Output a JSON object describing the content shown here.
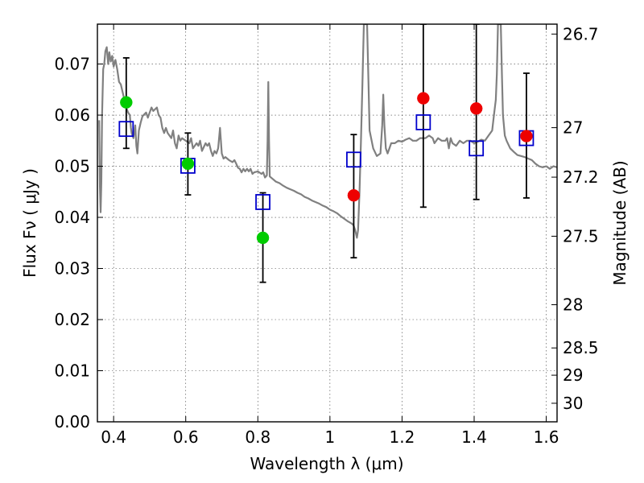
{
  "chart_data": {
    "type": "scatter",
    "xlabel": "Wavelength  λ (μm)",
    "ylabel": "Flux  Fν  ( μJy )",
    "ylabel_right": "Magnitude (AB)",
    "xlim": [
      0.355,
      1.63
    ],
    "ylim": [
      0.0,
      0.0778
    ],
    "x_ticks": [
      {
        "v": 0.4,
        "label": "0.4"
      },
      {
        "v": 0.6,
        "label": "0.6"
      },
      {
        "v": 0.8,
        "label": "0.8"
      },
      {
        "v": 1.0,
        "label": "1"
      },
      {
        "v": 1.2,
        "label": "1.2"
      },
      {
        "v": 1.4,
        "label": "1.4"
      },
      {
        "v": 1.6,
        "label": "1.6"
      }
    ],
    "y_ticks": [
      {
        "v": 0.0,
        "label": "0.00"
      },
      {
        "v": 0.01,
        "label": "0.01"
      },
      {
        "v": 0.02,
        "label": "0.02"
      },
      {
        "v": 0.03,
        "label": "0.03"
      },
      {
        "v": 0.04,
        "label": "0.04"
      },
      {
        "v": 0.05,
        "label": "0.05"
      },
      {
        "v": 0.06,
        "label": "0.06"
      },
      {
        "v": 0.07,
        "label": "0.07"
      }
    ],
    "mag_ticks": [
      {
        "mag": 26.7,
        "label": "26.7"
      },
      {
        "mag": 27,
        "label": "27"
      },
      {
        "mag": 27.2,
        "label": "27.2"
      },
      {
        "mag": 27.5,
        "label": "27.5"
      },
      {
        "mag": 28,
        "label": "28"
      },
      {
        "mag": 28.5,
        "label": "28.5"
      },
      {
        "mag": 29,
        "label": "29"
      },
      {
        "mag": 30,
        "label": "30"
      }
    ],
    "grid": true,
    "series": [
      {
        "kind": "line",
        "color": "#808080",
        "points": [
          [
            0.36,
            0.059
          ],
          [
            0.362,
            0.046
          ],
          [
            0.364,
            0.041
          ],
          [
            0.366,
            0.047
          ],
          [
            0.368,
            0.06
          ],
          [
            0.371,
            0.069
          ],
          [
            0.374,
            0.07
          ],
          [
            0.377,
            0.0725
          ],
          [
            0.381,
            0.0733
          ],
          [
            0.385,
            0.07
          ],
          [
            0.388,
            0.0723
          ],
          [
            0.392,
            0.0705
          ],
          [
            0.396,
            0.0716
          ],
          [
            0.4,
            0.0695
          ],
          [
            0.405,
            0.0708
          ],
          [
            0.41,
            0.069
          ],
          [
            0.415,
            0.0665
          ],
          [
            0.42,
            0.066
          ],
          [
            0.425,
            0.0645
          ],
          [
            0.43,
            0.063
          ],
          [
            0.435,
            0.0615
          ],
          [
            0.44,
            0.0605
          ],
          [
            0.445,
            0.06
          ],
          [
            0.448,
            0.0575
          ],
          [
            0.45,
            0.0565
          ],
          [
            0.455,
            0.0555
          ],
          [
            0.46,
            0.058
          ],
          [
            0.463,
            0.054
          ],
          [
            0.466,
            0.0525
          ],
          [
            0.47,
            0.057
          ],
          [
            0.475,
            0.0585
          ],
          [
            0.48,
            0.0598
          ],
          [
            0.49,
            0.0605
          ],
          [
            0.495,
            0.0595
          ],
          [
            0.5,
            0.0605
          ],
          [
            0.505,
            0.0615
          ],
          [
            0.51,
            0.0608
          ],
          [
            0.52,
            0.0615
          ],
          [
            0.525,
            0.06
          ],
          [
            0.53,
            0.0595
          ],
          [
            0.535,
            0.0575
          ],
          [
            0.54,
            0.0565
          ],
          [
            0.545,
            0.0575
          ],
          [
            0.55,
            0.0565
          ],
          [
            0.56,
            0.0555
          ],
          [
            0.565,
            0.057
          ],
          [
            0.57,
            0.0545
          ],
          [
            0.575,
            0.0535
          ],
          [
            0.58,
            0.056
          ],
          [
            0.585,
            0.055
          ],
          [
            0.59,
            0.0555
          ],
          [
            0.6,
            0.055
          ],
          [
            0.61,
            0.0545
          ],
          [
            0.615,
            0.0555
          ],
          [
            0.62,
            0.0535
          ],
          [
            0.63,
            0.0545
          ],
          [
            0.635,
            0.054
          ],
          [
            0.64,
            0.055
          ],
          [
            0.645,
            0.053
          ],
          [
            0.655,
            0.0545
          ],
          [
            0.66,
            0.054
          ],
          [
            0.665,
            0.0545
          ],
          [
            0.67,
            0.053
          ],
          [
            0.675,
            0.052
          ],
          [
            0.68,
            0.053
          ],
          [
            0.685,
            0.0525
          ],
          [
            0.69,
            0.0535
          ],
          [
            0.695,
            0.0575
          ],
          [
            0.7,
            0.0525
          ],
          [
            0.705,
            0.0515
          ],
          [
            0.71,
            0.0518
          ],
          [
            0.72,
            0.0512
          ],
          [
            0.73,
            0.0508
          ],
          [
            0.735,
            0.0512
          ],
          [
            0.74,
            0.0505
          ],
          [
            0.745,
            0.0497
          ],
          [
            0.75,
            0.0495
          ],
          [
            0.755,
            0.0488
          ],
          [
            0.76,
            0.0495
          ],
          [
            0.765,
            0.049
          ],
          [
            0.77,
            0.0495
          ],
          [
            0.775,
            0.049
          ],
          [
            0.78,
            0.0495
          ],
          [
            0.785,
            0.0485
          ],
          [
            0.79,
            0.0488
          ],
          [
            0.8,
            0.049
          ],
          [
            0.81,
            0.0485
          ],
          [
            0.815,
            0.0488
          ],
          [
            0.82,
            0.0478
          ],
          [
            0.825,
            0.0482
          ],
          [
            0.827,
            0.055
          ],
          [
            0.829,
            0.0665
          ],
          [
            0.831,
            0.055
          ],
          [
            0.833,
            0.048
          ],
          [
            0.84,
            0.0476
          ],
          [
            0.85,
            0.047
          ],
          [
            0.86,
            0.0467
          ],
          [
            0.87,
            0.0462
          ],
          [
            0.88,
            0.0458
          ],
          [
            0.89,
            0.0455
          ],
          [
            0.9,
            0.0452
          ],
          [
            0.91,
            0.0448
          ],
          [
            0.92,
            0.0445
          ],
          [
            0.93,
            0.044
          ],
          [
            0.94,
            0.0437
          ],
          [
            0.95,
            0.0433
          ],
          [
            0.96,
            0.043
          ],
          [
            0.97,
            0.0427
          ],
          [
            0.98,
            0.0423
          ],
          [
            0.99,
            0.042
          ],
          [
            1.0,
            0.0415
          ],
          [
            1.01,
            0.0412
          ],
          [
            1.02,
            0.0408
          ],
          [
            1.03,
            0.0402
          ],
          [
            1.04,
            0.0397
          ],
          [
            1.05,
            0.0392
          ],
          [
            1.06,
            0.0388
          ],
          [
            1.065,
            0.0385
          ],
          [
            1.07,
            0.0375
          ],
          [
            1.075,
            0.036
          ],
          [
            1.078,
            0.0375
          ],
          [
            1.082,
            0.045
          ],
          [
            1.086,
            0.055
          ],
          [
            1.09,
            0.066
          ],
          [
            1.094,
            0.0778
          ],
          [
            1.103,
            0.0778
          ],
          [
            1.107,
            0.066
          ],
          [
            1.11,
            0.057
          ],
          [
            1.12,
            0.0535
          ],
          [
            1.13,
            0.052
          ],
          [
            1.14,
            0.0525
          ],
          [
            1.145,
            0.058
          ],
          [
            1.148,
            0.064
          ],
          [
            1.151,
            0.058
          ],
          [
            1.155,
            0.0535
          ],
          [
            1.16,
            0.0525
          ],
          [
            1.17,
            0.0545
          ],
          [
            1.18,
            0.0545
          ],
          [
            1.19,
            0.055
          ],
          [
            1.2,
            0.0548
          ],
          [
            1.21,
            0.0552
          ],
          [
            1.22,
            0.0555
          ],
          [
            1.23,
            0.055
          ],
          [
            1.24,
            0.055
          ],
          [
            1.25,
            0.0555
          ],
          [
            1.265,
            0.0555
          ],
          [
            1.275,
            0.056
          ],
          [
            1.285,
            0.0555
          ],
          [
            1.29,
            0.0545
          ],
          [
            1.3,
            0.0555
          ],
          [
            1.31,
            0.055
          ],
          [
            1.32,
            0.055
          ],
          [
            1.325,
            0.0555
          ],
          [
            1.33,
            0.0535
          ],
          [
            1.335,
            0.0555
          ],
          [
            1.34,
            0.0545
          ],
          [
            1.35,
            0.054
          ],
          [
            1.36,
            0.055
          ],
          [
            1.37,
            0.0545
          ],
          [
            1.38,
            0.055
          ],
          [
            1.39,
            0.055
          ],
          [
            1.4,
            0.0545
          ],
          [
            1.41,
            0.0548
          ],
          [
            1.42,
            0.0552
          ],
          [
            1.43,
            0.055
          ],
          [
            1.44,
            0.056
          ],
          [
            1.45,
            0.057
          ],
          [
            1.455,
            0.06
          ],
          [
            1.46,
            0.063
          ],
          [
            1.463,
            0.068
          ],
          [
            1.466,
            0.0778
          ],
          [
            1.474,
            0.0778
          ],
          [
            1.477,
            0.068
          ],
          [
            1.48,
            0.06
          ],
          [
            1.485,
            0.056
          ],
          [
            1.49,
            0.055
          ],
          [
            1.5,
            0.0535
          ],
          [
            1.51,
            0.0528
          ],
          [
            1.52,
            0.0522
          ],
          [
            1.53,
            0.052
          ],
          [
            1.54,
            0.0518
          ],
          [
            1.55,
            0.0515
          ],
          [
            1.56,
            0.0512
          ],
          [
            1.57,
            0.0505
          ],
          [
            1.58,
            0.05
          ],
          [
            1.59,
            0.0498
          ],
          [
            1.6,
            0.05
          ],
          [
            1.61,
            0.0495
          ],
          [
            1.62,
            0.05
          ],
          [
            1.63,
            0.0498
          ]
        ]
      },
      {
        "kind": "errorbar",
        "points": [
          {
            "x": 0.435,
            "low": 0.0535,
            "high": 0.0712
          },
          {
            "x": 0.606,
            "low": 0.0444,
            "high": 0.0565
          },
          {
            "x": 0.814,
            "low": 0.0273,
            "high": 0.0448
          },
          {
            "x": 1.066,
            "low": 0.0321,
            "high": 0.0562
          },
          {
            "x": 1.259,
            "low": 0.042,
            "high": 0.0778
          },
          {
            "x": 1.406,
            "low": 0.0435,
            "high": 0.0778
          },
          {
            "x": 1.545,
            "low": 0.0438,
            "high": 0.0682
          }
        ]
      },
      {
        "kind": "squares",
        "color": "#0000cc",
        "points": [
          [
            0.435,
            0.0573
          ],
          [
            0.606,
            0.0501
          ],
          [
            0.814,
            0.043
          ],
          [
            1.066,
            0.0513
          ],
          [
            1.259,
            0.0586
          ],
          [
            1.406,
            0.0535
          ],
          [
            1.545,
            0.0555
          ]
        ]
      },
      {
        "kind": "circles",
        "color": "#00cc00",
        "points": [
          [
            0.435,
            0.0625
          ],
          [
            0.606,
            0.0505
          ],
          [
            0.814,
            0.036
          ]
        ]
      },
      {
        "kind": "circles",
        "color": "#ee0000",
        "points": [
          [
            1.066,
            0.0443
          ],
          [
            1.259,
            0.0633
          ],
          [
            1.406,
            0.0613
          ],
          [
            1.545,
            0.0559
          ]
        ]
      }
    ]
  }
}
